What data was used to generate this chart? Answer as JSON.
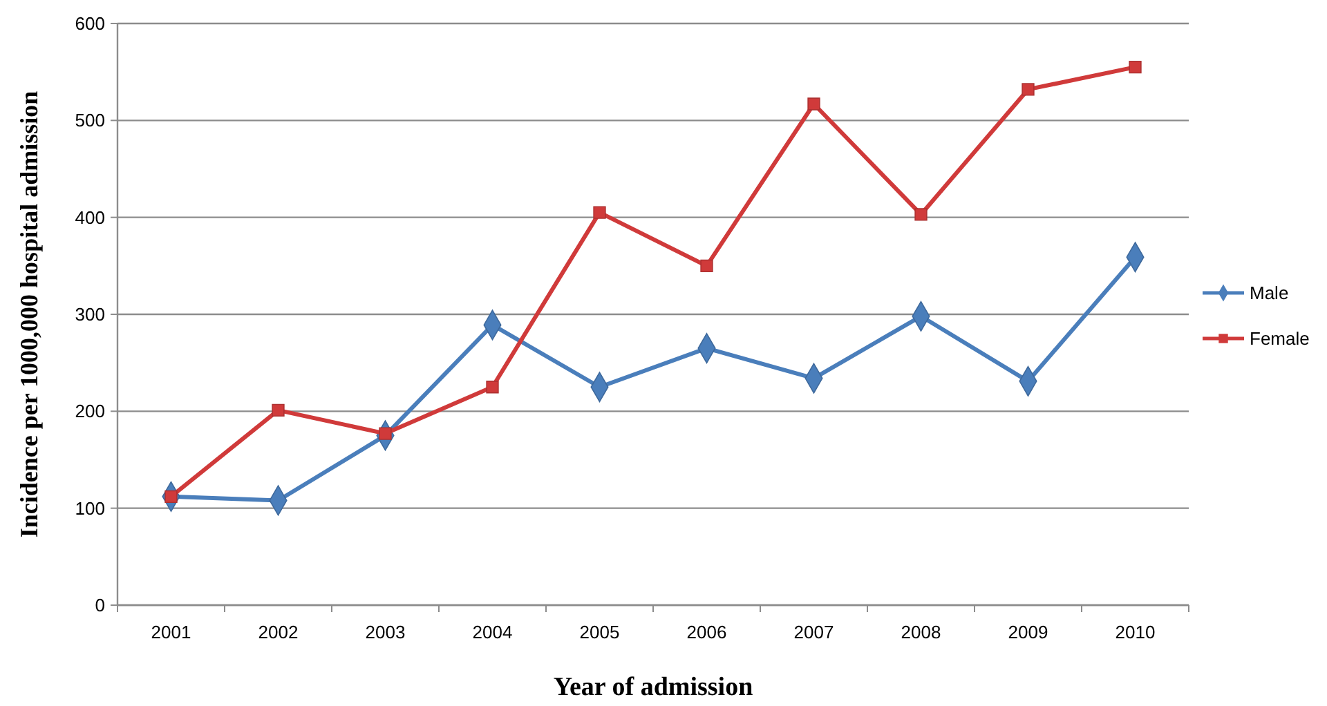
{
  "chart_data": {
    "type": "line",
    "xlabel": "Year of admission",
    "ylabel": "Incidence per 1000,000 hospital admission",
    "categories": [
      "2001",
      "2002",
      "2003",
      "2004",
      "2005",
      "2006",
      "2007",
      "2008",
      "2009",
      "2010"
    ],
    "series": [
      {
        "name": "Male",
        "color": "#4a7ebb",
        "marker": "diamond",
        "values": [
          112,
          108,
          175,
          289,
          225,
          265,
          234,
          298,
          231,
          359
        ]
      },
      {
        "name": "Female",
        "color": "#d03a3a",
        "marker": "square",
        "values": [
          112,
          201,
          177,
          225,
          405,
          350,
          517,
          403,
          532,
          555
        ]
      }
    ],
    "ylim": [
      0,
      600
    ],
    "yticks": [
      0,
      100,
      200,
      300,
      400,
      500,
      600
    ],
    "grid": "y",
    "legend": "right",
    "line_style": "solid"
  }
}
